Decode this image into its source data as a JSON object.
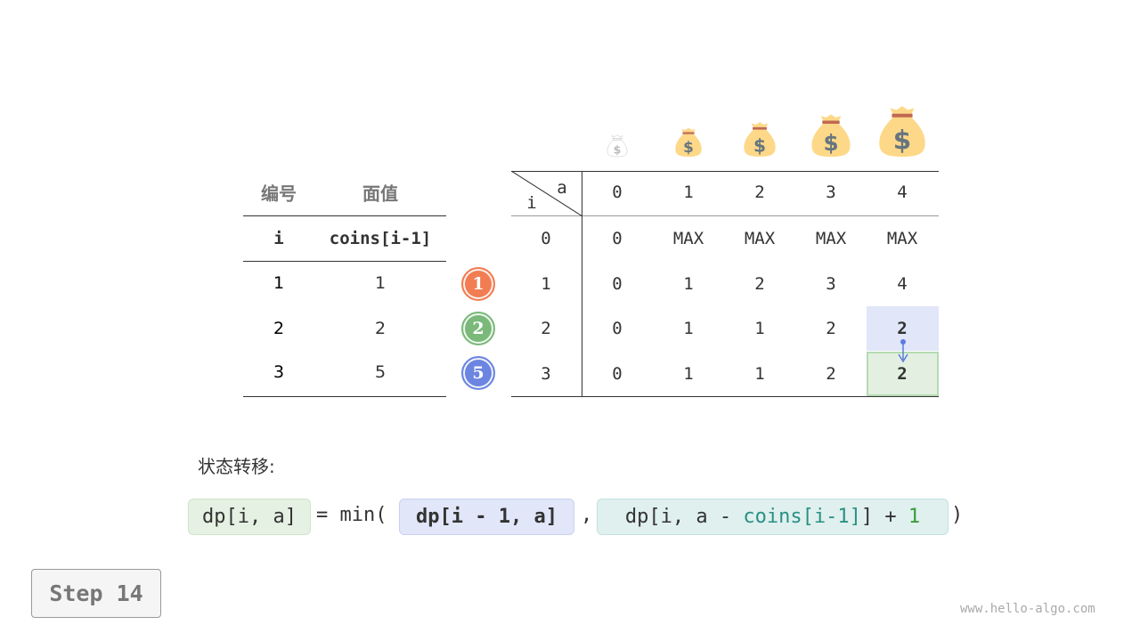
{
  "coin_table": {
    "headers": [
      "编号",
      "面值"
    ],
    "subheaders": [
      "i",
      "coins[i-1]"
    ],
    "rows": [
      [
        "1",
        "1"
      ],
      [
        "2",
        "2"
      ],
      [
        "3",
        "5"
      ]
    ]
  },
  "coin_badges": [
    {
      "label": "1",
      "color": "#f27d52"
    },
    {
      "label": "2",
      "color": "#7ab97a"
    },
    {
      "label": "5",
      "color": "#6b85e0"
    }
  ],
  "dp_table": {
    "corner_row_label": "i",
    "corner_col_label": "a",
    "col_headers": [
      "0",
      "1",
      "2",
      "3",
      "4"
    ],
    "row_labels": [
      "0",
      "1",
      "2",
      "3"
    ],
    "cells": [
      [
        "0",
        "MAX",
        "MAX",
        "MAX",
        "MAX"
      ],
      [
        "0",
        "1",
        "2",
        "3",
        "4"
      ],
      [
        "0",
        "1",
        "1",
        "2",
        "2"
      ],
      [
        "0",
        "1",
        "1",
        "2",
        "2"
      ]
    ],
    "highlight_source": {
      "row": 2,
      "col": 4,
      "color": "#e1e6f8"
    },
    "highlight_target": {
      "row": 3,
      "col": 4,
      "color": "#e3f0e1"
    },
    "column_icons": "money-bag-icon"
  },
  "transition": {
    "label": "状态转移:",
    "lhs": "dp[i, a]",
    "eq": "= min(",
    "term1": "dp[i - 1, a]",
    "comma": ",",
    "term2_prefix": "dp[i, a - ",
    "term2_coins": "coins[i-1]",
    "term2_mid": "] + ",
    "term2_one": "1",
    "close": ")"
  },
  "step_button": "Step 14",
  "watermark": "www.hello-algo.com"
}
